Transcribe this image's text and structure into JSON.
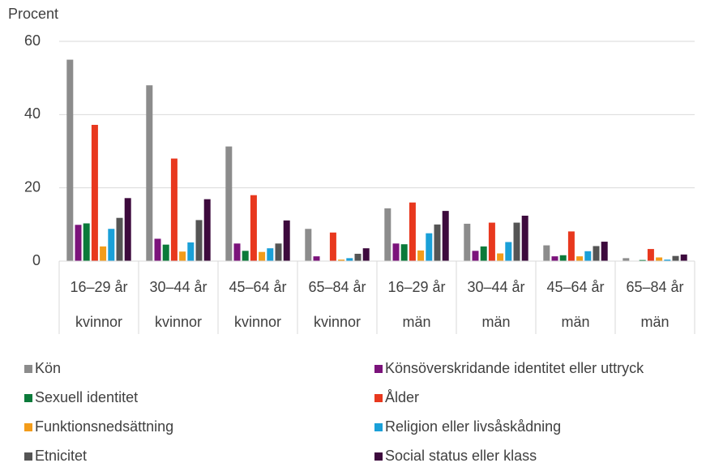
{
  "chart_data": {
    "type": "bar",
    "y_axis_label": "Procent",
    "categories": [
      "16–29 år",
      "30–44 år",
      "45–64 år",
      "65–84 år",
      "16–29 år",
      "30–44 år",
      "45–64 år",
      "65–84 år"
    ],
    "category_groups": [
      "kvinnor",
      "kvinnor",
      "kvinnor",
      "kvinnor",
      "män",
      "män",
      "män",
      "män"
    ],
    "series": [
      {
        "name": "Kön",
        "color": "#8c8c8c",
        "values": [
          55,
          48,
          31.3,
          8.8,
          14.4,
          10.2,
          4.3,
          0.8
        ]
      },
      {
        "name": "Könsöverskridande identitet eller uttryck",
        "color": "#7b137b",
        "values": [
          9.9,
          6.1,
          4.8,
          1.3,
          4.8,
          2.8,
          1.3,
          0.1
        ]
      },
      {
        "name": "Sexuell identitet",
        "color": "#0b7a3a",
        "values": [
          10.3,
          4.5,
          2.8,
          0,
          4.6,
          4.0,
          1.6,
          0.3
        ]
      },
      {
        "name": "Ålder",
        "color": "#e8381e",
        "values": [
          37.2,
          28,
          18,
          7.8,
          16,
          10.5,
          8.1,
          3.3
        ]
      },
      {
        "name": "Funktionsnedsättning",
        "color": "#f39c1a",
        "values": [
          4,
          2.6,
          2.5,
          0.4,
          2.9,
          2.1,
          1.3,
          1
        ]
      },
      {
        "name": "Religion eller livsåskådning",
        "color": "#1aa0d8",
        "values": [
          8.8,
          5.1,
          3.5,
          0.8,
          7.6,
          5.2,
          2.7,
          0.4
        ]
      },
      {
        "name": "Etnicitet",
        "color": "#555555",
        "values": [
          11.8,
          11.2,
          4.8,
          2.0,
          10,
          10.5,
          4.1,
          1.4
        ]
      },
      {
        "name": "Social status eller klass",
        "color": "#3d0a3d",
        "values": [
          17.2,
          16.9,
          11.1,
          3.5,
          13.7,
          12.4,
          5.3,
          1.8
        ]
      }
    ],
    "ylim": [
      0,
      60
    ],
    "yticks": [
      0,
      20,
      40,
      60
    ],
    "grid": true
  }
}
